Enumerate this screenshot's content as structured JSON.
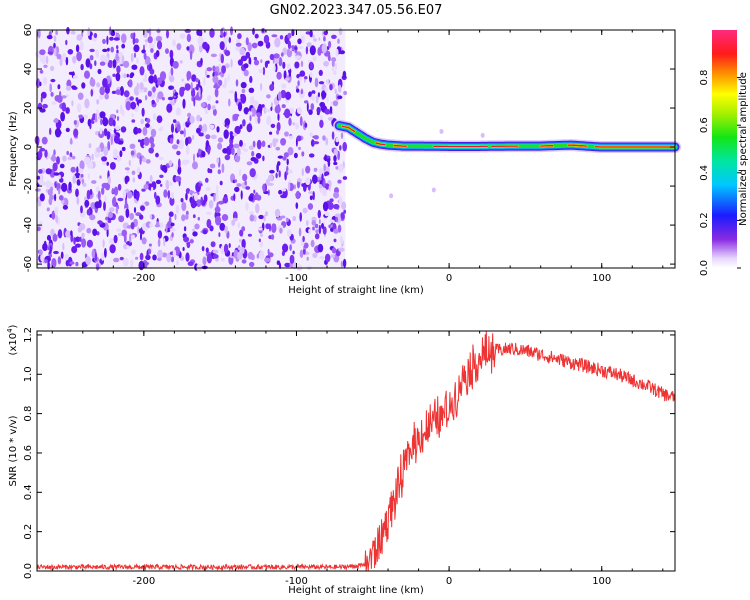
{
  "figure": {
    "title": "GN02.2023.347.05.56.E07"
  },
  "chart_data": [
    {
      "type": "heatmap",
      "name": "spectrogram",
      "xlabel": "Height of straight line (km)",
      "ylabel": "Frequency (Hz)",
      "xlim": [
        -270,
        148
      ],
      "ylim": [
        -62,
        60
      ],
      "x_ticks": [
        -200,
        -100,
        0,
        100
      ],
      "x_tick_labels": [
        "-200",
        "-100",
        "0",
        "100"
      ],
      "y_ticks": [
        -60,
        -40,
        -20,
        0,
        20,
        40,
        60
      ],
      "y_tick_labels": [
        "-60",
        "-40",
        "-20",
        "0",
        "20",
        "40",
        "60"
      ],
      "noise_region_x": [
        -270,
        -68
      ],
      "signal_track": {
        "x": [
          -72,
          -66,
          -60,
          -55,
          -50,
          -45,
          -40,
          -30,
          -20,
          0,
          20,
          40,
          60,
          80,
          100,
          120,
          148
        ],
        "frequency_hz": [
          11,
          10,
          7,
          4.5,
          2.5,
          1.5,
          1,
          0.5,
          0.5,
          0.3,
          0.3,
          0.5,
          0.5,
          1,
          0,
          0,
          0
        ]
      },
      "colorbar": {
        "label": "Normalized spectral amplitude",
        "range": [
          0.0,
          1.0
        ],
        "ticks": [
          0.0,
          0.2,
          0.4,
          0.6,
          0.8
        ],
        "tick_labels": [
          "0.0",
          "0.2",
          "0.4",
          "0.6",
          "0.8"
        ],
        "colormap": "rainbow (white-violet-blue-cyan-green-yellow-red-magenta)"
      }
    },
    {
      "type": "line",
      "name": "snr",
      "xlabel": "Height of straight line (km)",
      "ylabel": "SNR (10 * v/v)",
      "y_multiplier_label": "(x10",
      "y_multiplier_exponent": "4",
      "y_multiplier_close": ")",
      "xlim": [
        -270,
        148
      ],
      "ylim": [
        0,
        1.22
      ],
      "x_ticks": [
        -200,
        -100,
        0,
        100
      ],
      "x_tick_labels": [
        "-200",
        "-100",
        "0",
        "100"
      ],
      "y_ticks": [
        0.0,
        0.2,
        0.4,
        0.6,
        0.8,
        1.0,
        1.2
      ],
      "y_tick_labels": [
        "0.0",
        "0.2",
        "0.4",
        "0.6",
        "0.8",
        "1.0",
        "1.2"
      ],
      "color": "#ee3333",
      "series": [
        {
          "x": [
            -270,
            -200,
            -120,
            -70,
            -55,
            -45,
            -40,
            -35,
            -30,
            -25,
            -20,
            -10,
            0,
            10,
            20,
            30,
            40,
            50,
            60,
            70,
            80,
            90,
            100,
            110,
            120,
            130,
            140,
            148
          ],
          "y": [
            0.02,
            0.02,
            0.02,
            0.02,
            0.03,
            0.15,
            0.28,
            0.38,
            0.5,
            0.62,
            0.68,
            0.75,
            0.82,
            1.0,
            1.08,
            1.12,
            1.13,
            1.12,
            1.1,
            1.08,
            1.06,
            1.04,
            1.02,
            1.0,
            0.97,
            0.94,
            0.9,
            0.88
          ]
        }
      ]
    }
  ]
}
